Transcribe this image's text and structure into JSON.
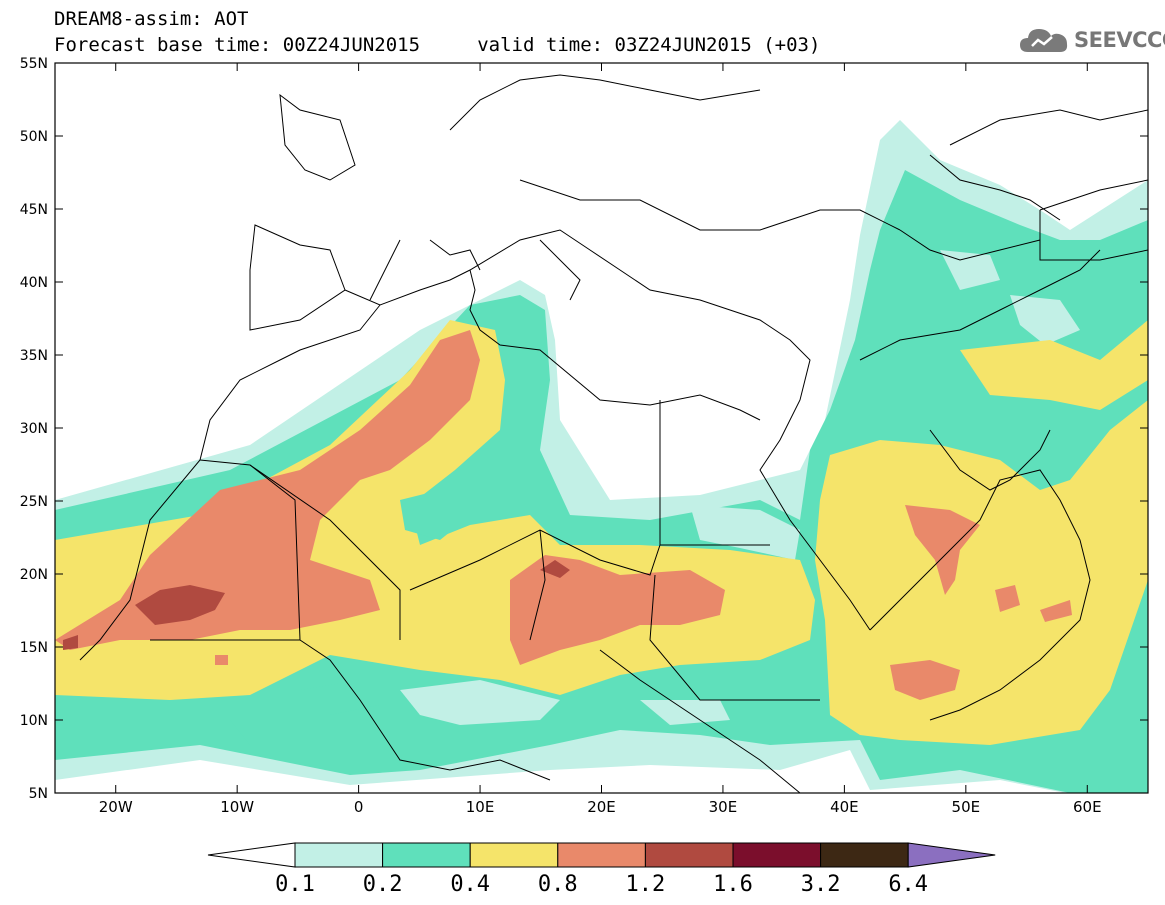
{
  "title": {
    "line1": "DREAM8-assim: AOT",
    "line2": "Forecast base time: 00Z24JUN2015     valid time: 03Z24JUN2015 (+03)"
  },
  "logo": {
    "text": "SEEVCCC",
    "icon": "cloud-icon"
  },
  "map": {
    "lon_range": [
      -25,
      65
    ],
    "lat_range": [
      5,
      55
    ],
    "lon_ticks": [
      "20W",
      "10W",
      "0",
      "10E",
      "20E",
      "30E",
      "40E",
      "50E",
      "60E"
    ],
    "lat_ticks": [
      "55N",
      "50N",
      "45N",
      "40N",
      "35N",
      "30N",
      "25N",
      "20N",
      "15N",
      "10N",
      "5N"
    ]
  },
  "colorbar": {
    "labels": [
      "0.1",
      "0.2",
      "0.4",
      "0.8",
      "1.2",
      "1.6",
      "3.2",
      "6.4"
    ],
    "colors": [
      "#ffffff",
      "#c2f0e6",
      "#5fe0bb",
      "#f5e46a",
      "#e9896a",
      "#b04a40",
      "#7b0e2c",
      "#3d2814",
      "#8b6fc0"
    ]
  }
}
